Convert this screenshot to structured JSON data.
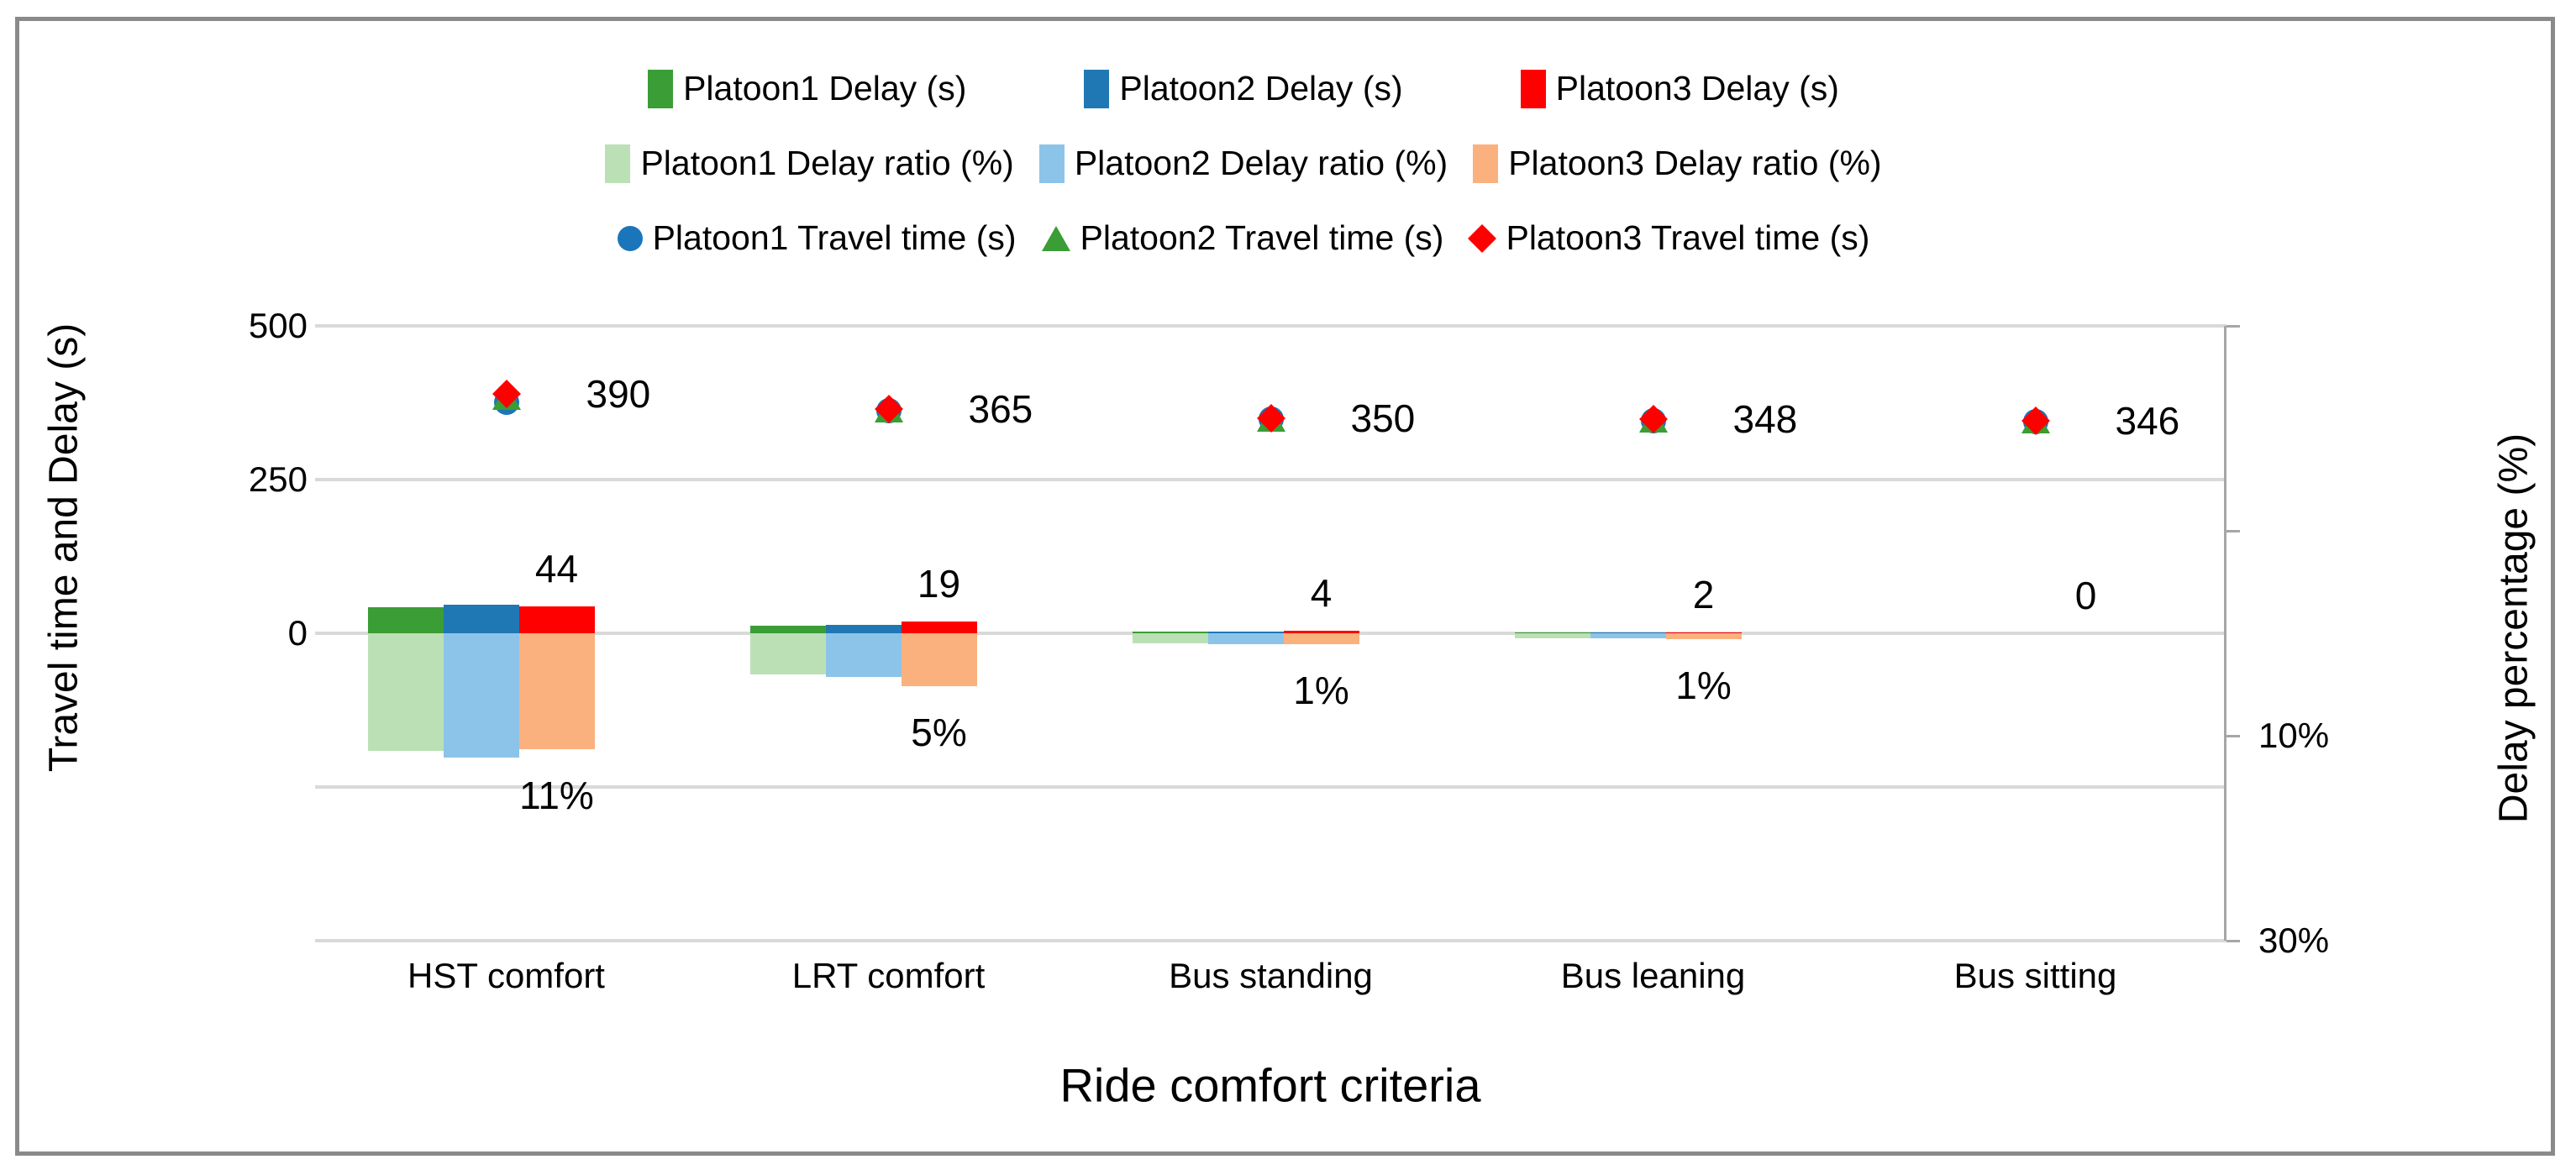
{
  "colors": {
    "gridline": "#D9D9D9",
    "secondary_axis_line": "#A6A6A6",
    "chart_border": "#8A8A8A",
    "text": "#000000"
  },
  "chart_data": {
    "type": "bar",
    "subtype": "clustered bars (dual axis, mirrored up/down) + scatter markers for travel time",
    "categories": [
      "HST comfort",
      "LRT comfort",
      "Bus standing",
      "Bus leaning",
      "Bus sitting"
    ],
    "series": [
      {
        "name": "Platoon1 Delay (s)",
        "type": "bar",
        "axis": "left",
        "direction": "up",
        "color": "#3A9D35",
        "values": [
          43,
          12,
          3,
          1,
          0
        ]
      },
      {
        "name": "Platoon2 Delay (s)",
        "type": "bar",
        "axis": "left",
        "direction": "up",
        "color": "#1F78B4",
        "values": [
          47,
          13,
          3,
          1,
          0
        ]
      },
      {
        "name": "Platoon3 Delay (s)",
        "type": "bar",
        "axis": "left",
        "direction": "up",
        "color": "#FF0000",
        "values": [
          44,
          19,
          4,
          2,
          0
        ],
        "data_labels": [
          "44",
          "19",
          "4",
          "2",
          "0"
        ]
      },
      {
        "name": "Platoon1 Delay ratio (%)",
        "type": "bar",
        "axis": "right",
        "direction": "down",
        "color": "#BCE0B5",
        "values": [
          11.5,
          4.0,
          1.0,
          0.5,
          0
        ]
      },
      {
        "name": "Platoon2 Delay ratio (%)",
        "type": "bar",
        "axis": "right",
        "direction": "down",
        "color": "#8CC4E9",
        "values": [
          12.1,
          4.3,
          1.1,
          0.5,
          0
        ]
      },
      {
        "name": "Platoon3 Delay ratio (%)",
        "type": "bar",
        "axis": "right",
        "direction": "down",
        "color": "#FAB17E",
        "values": [
          11.3,
          5.2,
          1.1,
          0.6,
          0
        ],
        "data_labels": [
          "11%",
          "5%",
          "1%",
          "1%",
          ""
        ]
      },
      {
        "name": "Platoon1 Travel time (s)",
        "type": "scatter",
        "axis": "left",
        "marker": "circle",
        "color": "#1B75BB",
        "values": [
          376,
          362,
          348,
          346,
          344
        ]
      },
      {
        "name": "Platoon2 Travel time (s)",
        "type": "scatter",
        "axis": "left",
        "marker": "triangle",
        "color": "#3A9D35",
        "values": [
          384,
          364,
          349,
          347,
          345
        ]
      },
      {
        "name": "Platoon3 Travel time (s)",
        "type": "scatter",
        "axis": "left",
        "marker": "diamond",
        "color": "#FF0000",
        "values": [
          390,
          365,
          350,
          348,
          346
        ],
        "data_labels": [
          "390",
          "365",
          "350",
          "348",
          "346"
        ]
      }
    ],
    "left_axis": {
      "title": "Travel time and Delay (s)",
      "range": [
        -500,
        500
      ],
      "ticks": [
        {
          "label": "500",
          "value": 500
        },
        {
          "label": "250",
          "value": 250
        },
        {
          "label": "0",
          "value": 0
        }
      ],
      "gridline_values": [
        500,
        250,
        0,
        -250,
        -500
      ]
    },
    "right_axis": {
      "title": "Delay percentage (%)",
      "range": [
        -30,
        30
      ],
      "tick_values": [
        -30,
        -10,
        10,
        30
      ],
      "ticks": [
        {
          "label": "10%",
          "value": 10
        },
        {
          "label": "30%",
          "value": 30
        }
      ]
    },
    "x_axis": {
      "title": "Ride comfort criteria"
    },
    "legend": {
      "position": "top",
      "rows": [
        [
          0,
          1,
          2
        ],
        [
          3,
          4,
          5
        ],
        [
          6,
          7,
          8
        ]
      ]
    },
    "grid": true
  }
}
